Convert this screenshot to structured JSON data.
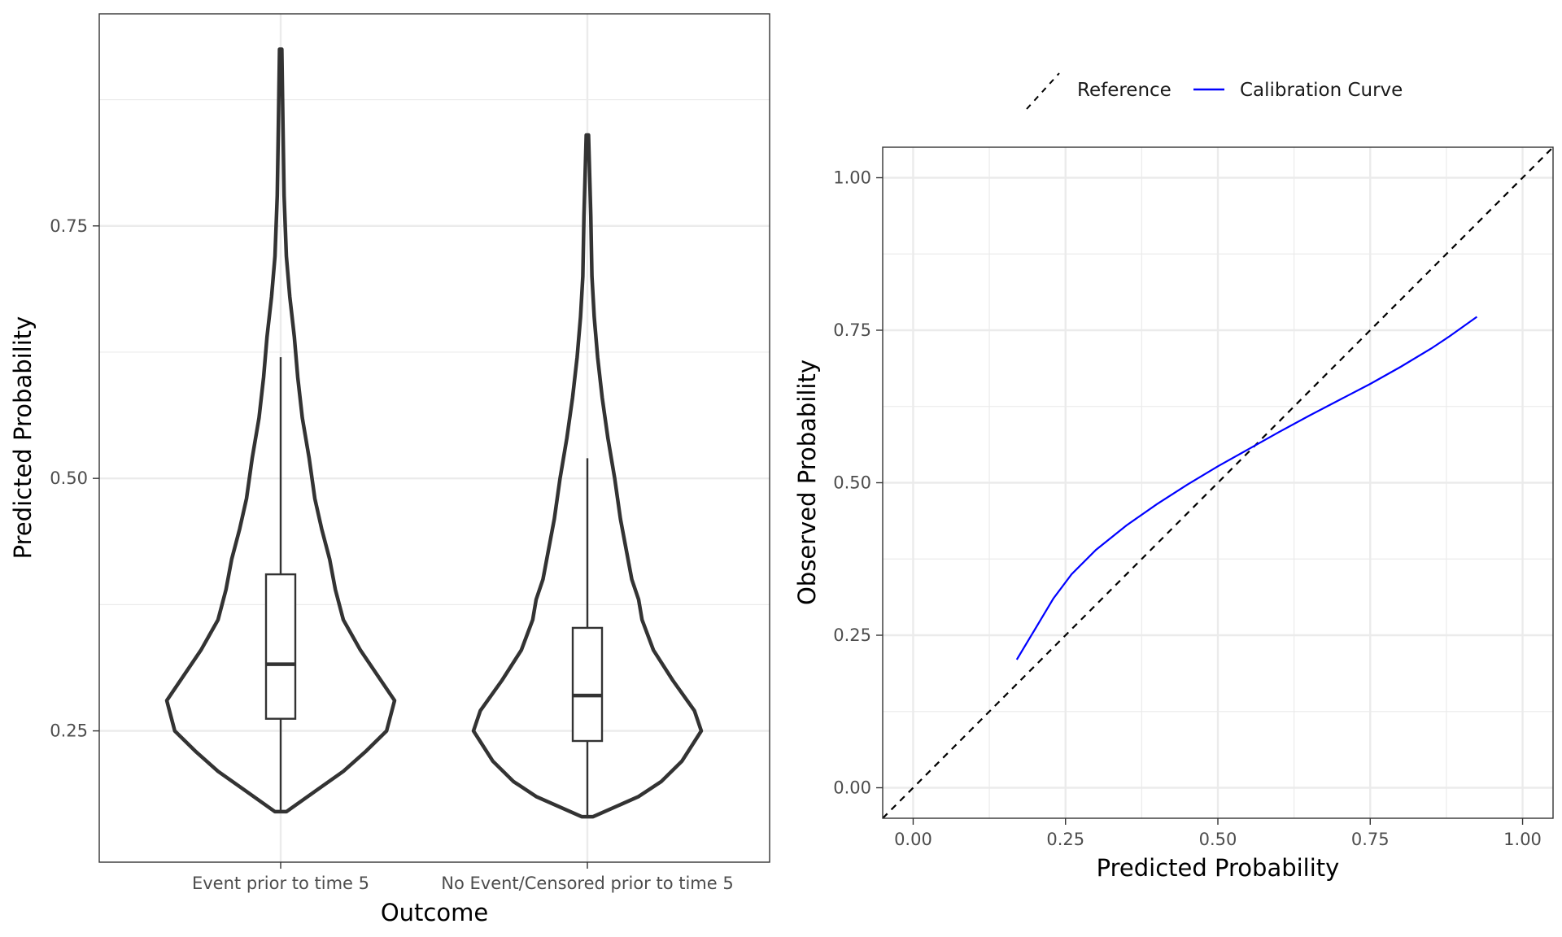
{
  "chart_data": [
    {
      "type": "violin",
      "xlabel": "Outcome",
      "ylabel": "Predicted Probability",
      "ylim": [
        0.12,
        0.96
      ],
      "yticks": [
        0.25,
        0.5,
        0.75
      ],
      "ytick_labels": [
        "0.25",
        "0.50",
        "0.75"
      ],
      "grid": true,
      "categories": [
        "Event prior to time 5",
        "No Event/Censored prior to time 5"
      ],
      "distributions": [
        {
          "category": "Event prior to time 5",
          "density_profile": [
            [
              0.17,
              0.05
            ],
            [
              0.19,
              0.3
            ],
            [
              0.21,
              0.55
            ],
            [
              0.23,
              0.75
            ],
            [
              0.25,
              0.93
            ],
            [
              0.28,
              1.0
            ],
            [
              0.3,
              0.88
            ],
            [
              0.33,
              0.7
            ],
            [
              0.36,
              0.55
            ],
            [
              0.39,
              0.48
            ],
            [
              0.42,
              0.43
            ],
            [
              0.45,
              0.36
            ],
            [
              0.48,
              0.3
            ],
            [
              0.52,
              0.25
            ],
            [
              0.56,
              0.19
            ],
            [
              0.6,
              0.15
            ],
            [
              0.64,
              0.12
            ],
            [
              0.68,
              0.08
            ],
            [
              0.72,
              0.05
            ],
            [
              0.78,
              0.03
            ],
            [
              0.85,
              0.02
            ],
            [
              0.925,
              0.01
            ]
          ],
          "box": {
            "lower_whisker": 0.17,
            "q1": 0.262,
            "median": 0.316,
            "q3": 0.405,
            "upper_whisker": 0.62
          }
        },
        {
          "category": "No Event/Censored prior to time 5",
          "density_profile": [
            [
              0.165,
              0.05
            ],
            [
              0.185,
              0.45
            ],
            [
              0.2,
              0.65
            ],
            [
              0.22,
              0.83
            ],
            [
              0.25,
              1.0
            ],
            [
              0.27,
              0.94
            ],
            [
              0.3,
              0.75
            ],
            [
              0.33,
              0.58
            ],
            [
              0.36,
              0.48
            ],
            [
              0.38,
              0.45
            ],
            [
              0.4,
              0.39
            ],
            [
              0.43,
              0.34
            ],
            [
              0.46,
              0.29
            ],
            [
              0.5,
              0.24
            ],
            [
              0.54,
              0.18
            ],
            [
              0.58,
              0.13
            ],
            [
              0.62,
              0.09
            ],
            [
              0.66,
              0.06
            ],
            [
              0.7,
              0.04
            ],
            [
              0.76,
              0.03
            ],
            [
              0.8,
              0.02
            ],
            [
              0.84,
              0.01
            ]
          ],
          "box": {
            "lower_whisker": 0.165,
            "q1": 0.24,
            "median": 0.285,
            "q3": 0.352,
            "upper_whisker": 0.52
          }
        }
      ]
    },
    {
      "type": "line",
      "xlabel": "Predicted Probability",
      "ylabel": "Observed Probability",
      "xlim": [
        -0.05,
        1.05
      ],
      "ylim": [
        -0.05,
        1.05
      ],
      "xticks": [
        0.0,
        0.25,
        0.5,
        0.75,
        1.0
      ],
      "xtick_labels": [
        "0.00",
        "0.25",
        "0.50",
        "0.75",
        "1.00"
      ],
      "yticks": [
        0.0,
        0.25,
        0.5,
        0.75,
        1.0
      ],
      "ytick_labels": [
        "0.00",
        "0.25",
        "0.50",
        "0.75",
        "1.00"
      ],
      "grid": true,
      "legend_position": "top",
      "series": [
        {
          "name": "Reference",
          "style": "dashed",
          "color": "#000000",
          "x": [
            -0.05,
            1.05
          ],
          "y": [
            -0.05,
            1.05
          ]
        },
        {
          "name": "Calibration Curve",
          "style": "solid",
          "color": "#0000ff",
          "x": [
            0.17,
            0.2,
            0.23,
            0.26,
            0.3,
            0.35,
            0.4,
            0.45,
            0.5,
            0.55,
            0.6,
            0.65,
            0.7,
            0.75,
            0.8,
            0.85,
            0.88,
            0.925
          ],
          "y": [
            0.21,
            0.26,
            0.31,
            0.35,
            0.39,
            0.43,
            0.465,
            0.497,
            0.527,
            0.555,
            0.583,
            0.61,
            0.636,
            0.662,
            0.69,
            0.72,
            0.74,
            0.772
          ]
        }
      ]
    }
  ]
}
